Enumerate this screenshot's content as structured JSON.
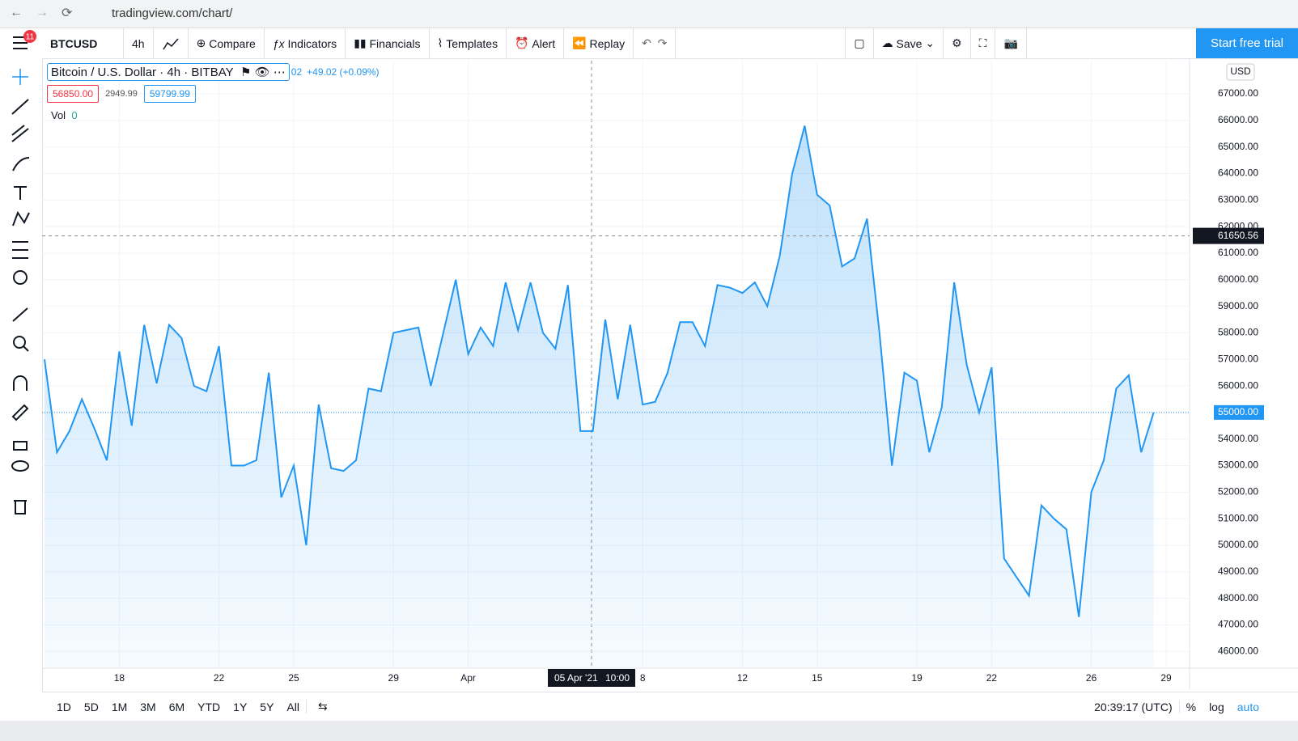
{
  "browser": {
    "url": "tradingview.com/chart/"
  },
  "toolbar": {
    "badge": "11",
    "symbol": "BTCUSD",
    "interval": "4h",
    "compare": "Compare",
    "indicators": "Indicators",
    "financials": "Financials",
    "templates": "Templates",
    "alert": "Alert",
    "replay": "Replay",
    "save": "Save",
    "trial": "Start free trial"
  },
  "legend": {
    "title": "Bitcoin / U.S. Dollar · 4h · BITBAY",
    "partial": "02",
    "change": "+49.02 (+0.09%)",
    "bid": "56850.00",
    "spread": "2949.99",
    "ask": "59799.99",
    "vol": "Vol",
    "vol_value": "0"
  },
  "chart_data": {
    "type": "area",
    "currency": "USD",
    "categories": [
      null,
      null,
      null,
      null,
      null,
      null,
      "18",
      null,
      null,
      null,
      null,
      null,
      null,
      null,
      "22",
      null,
      null,
      null,
      null,
      null,
      "25",
      null,
      null,
      null,
      null,
      null,
      null,
      null,
      "29",
      null,
      null,
      null,
      null,
      null,
      "Apr",
      null,
      null,
      null,
      null,
      null,
      null,
      null,
      null,
      null,
      null,
      null,
      null,
      null,
      "8",
      null,
      null,
      null,
      null,
      null,
      null,
      null,
      "12",
      null,
      null,
      null,
      null,
      null,
      "15",
      null,
      null,
      null,
      null,
      null,
      null,
      null,
      "19",
      null,
      null,
      null,
      null,
      null,
      "22",
      null,
      null,
      null,
      null,
      null,
      null,
      null,
      "26",
      null,
      null,
      null,
      null,
      null,
      "29"
    ],
    "series": [
      {
        "name": "BTCUSD",
        "color": "#2196f3",
        "values": [
          57000,
          53500,
          54300,
          55500,
          54400,
          53200,
          57300,
          54500,
          58300,
          56100,
          58300,
          57800,
          56000,
          55800,
          57500,
          53000,
          53000,
          53200,
          56500,
          51800,
          53000,
          50000,
          55300,
          52900,
          52800,
          53200,
          55900,
          55800,
          58000,
          58100,
          58200,
          56000,
          58000,
          60000,
          57200,
          58200,
          57500,
          59900,
          58100,
          59900,
          58000,
          57400,
          59800,
          54300,
          54300,
          58500,
          55500,
          58300,
          55300,
          55400,
          56500,
          58400,
          58400,
          57500,
          59800,
          59700,
          59500,
          59900,
          59000,
          60900,
          64000,
          65800,
          63200,
          62800,
          60500,
          60800,
          62300,
          58000,
          53000,
          56500,
          56200,
          53500,
          55200,
          59900,
          56800,
          55000,
          56700,
          49500,
          48800,
          48100,
          51500,
          51000,
          50600,
          47300,
          52000,
          53200,
          55900,
          56400,
          53500,
          55000,
          null
        ]
      }
    ],
    "ylim": [
      45400,
      68250
    ],
    "yticks": [
      {
        "value": 46000,
        "label": "46000.00"
      },
      {
        "value": 47000,
        "label": "47000.00"
      },
      {
        "value": 48000,
        "label": "48000.00"
      },
      {
        "value": 49000,
        "label": "49000.00"
      },
      {
        "value": 50000,
        "label": "50000.00"
      },
      {
        "value": 51000,
        "label": "51000.00"
      },
      {
        "value": 52000,
        "label": "52000.00"
      },
      {
        "value": 53000,
        "label": "53000.00"
      },
      {
        "value": 54000,
        "label": "54000.00"
      },
      {
        "value": 55000,
        "label": "55000.00"
      },
      {
        "value": 56000,
        "label": "56000.00"
      },
      {
        "value": 57000,
        "label": "57000.00"
      },
      {
        "value": 58000,
        "label": "58000.00"
      },
      {
        "value": 59000,
        "label": "59000.00"
      },
      {
        "value": 60000,
        "label": "60000.00"
      },
      {
        "value": 61000,
        "label": "61000.00"
      },
      {
        "value": 62000,
        "label": "62000.00"
      },
      {
        "value": 63000,
        "label": "63000.00"
      },
      {
        "value": 64000,
        "label": "64000.00"
      },
      {
        "value": 65000,
        "label": "65000.00"
      },
      {
        "value": 66000,
        "label": "66000.00"
      },
      {
        "value": 67000,
        "label": "67000.00"
      }
    ],
    "grid": true,
    "crosshair": {
      "price": 61650.56,
      "date": "05 Apr '21",
      "time": "10:00"
    },
    "last_price": {
      "value": 55000,
      "label": "55000.00"
    }
  },
  "bottom": {
    "ranges": [
      "1D",
      "5D",
      "1M",
      "3M",
      "6M",
      "YTD",
      "1Y",
      "5Y",
      "All"
    ],
    "clock": "20:39:17 (UTC)",
    "percent": "%",
    "log": "log",
    "auto": "auto"
  }
}
